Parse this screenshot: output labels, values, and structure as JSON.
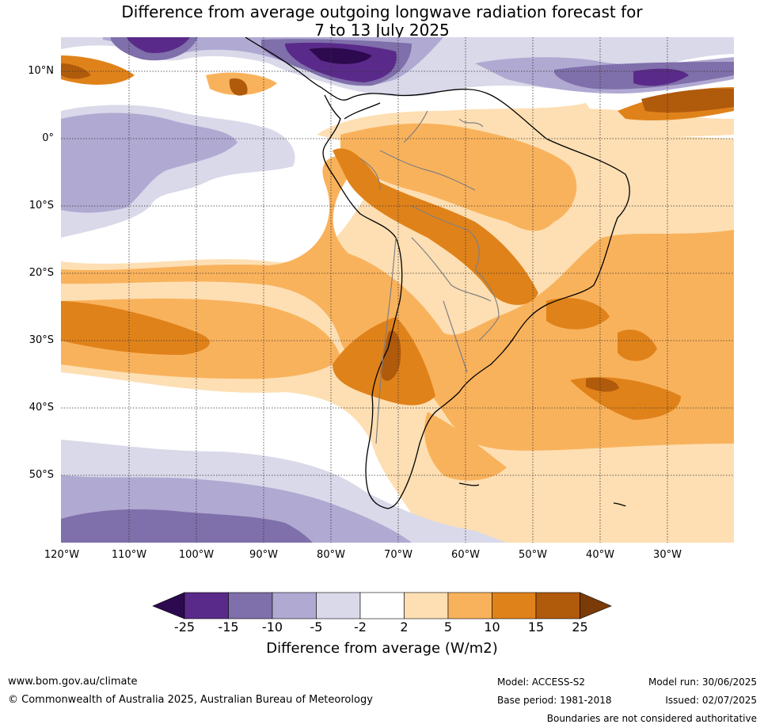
{
  "title": {
    "line1": "Difference from average outgoing longwave radiation forecast for",
    "line2": "7 to 13 July 2025"
  },
  "map": {
    "lat_labels": [
      "10°N",
      "0°",
      "10°S",
      "20°S",
      "30°S",
      "40°S",
      "50°S"
    ],
    "lon_labels": [
      "120°W",
      "110°W",
      "100°W",
      "90°W",
      "80°W",
      "70°W",
      "60°W",
      "50°W",
      "40°W",
      "30°W"
    ]
  },
  "colorbar": {
    "ticks": [
      "-25",
      "-15",
      "-10",
      "-5",
      "-2",
      "2",
      "5",
      "10",
      "15",
      "25"
    ],
    "colors": [
      "#2d0a4f",
      "#5a2a8a",
      "#7f6faa",
      "#b0a9d2",
      "#d9d9ea",
      "#ffffff",
      "#fddfb3",
      "#f9b25c",
      "#e0821a",
      "#b05a0c",
      "#7a3b06"
    ],
    "label": "Difference from average (W/m2)"
  },
  "footer": {
    "url": "www.bom.gov.au/climate",
    "copyright": "© Commonwealth of Australia 2025, Australian Bureau of Meteorology",
    "model": "Model: ACCESS-S2",
    "base_period": "Base period: 1981-2018",
    "model_run": "Model run: 30/06/2025",
    "issued": "Issued: 02/07/2025",
    "disclaimer": "Boundaries are not considered authoritative"
  }
}
